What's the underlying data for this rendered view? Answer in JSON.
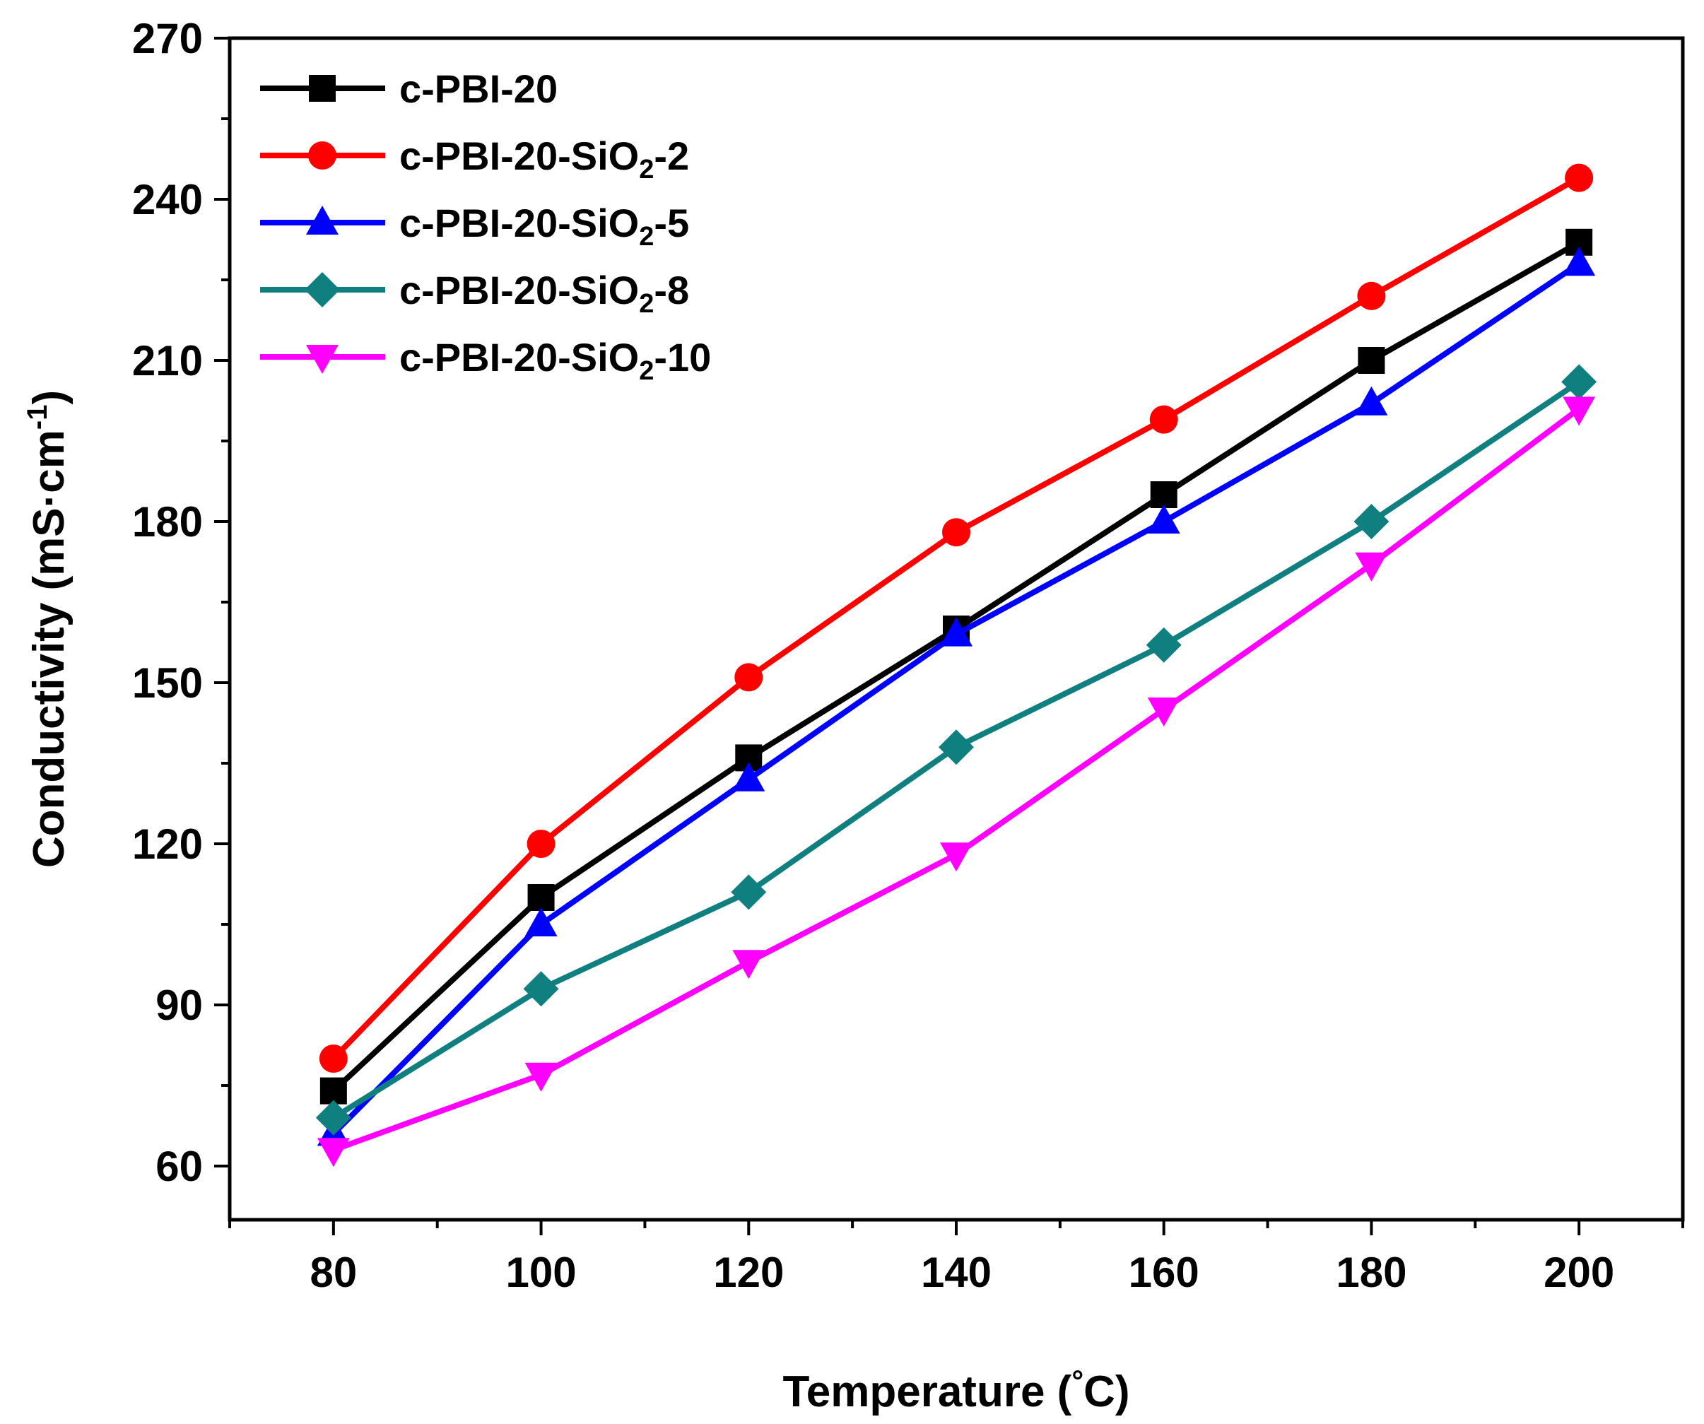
{
  "chart_data": {
    "type": "line",
    "title": "",
    "xlabel": "Temperature (°C)",
    "xlabel_parts": {
      "main": "Temperature (",
      "degree": "°",
      "unit": "C)"
    },
    "ylabel": "Conductivity (mS·cm-1)",
    "ylabel_parts": {
      "main": "Conductivity (mS·cm",
      "sup": "-1",
      "close": ")"
    },
    "x": [
      80,
      100,
      120,
      140,
      160,
      180,
      200
    ],
    "xlim": [
      70,
      210
    ],
    "ylim": [
      50,
      270
    ],
    "x_ticks": [
      80,
      100,
      120,
      140,
      160,
      180,
      200
    ],
    "y_ticks": [
      60,
      90,
      120,
      150,
      180,
      210,
      240,
      270
    ],
    "legend_position": "top-left",
    "grid": false,
    "series": [
      {
        "name": "c-PBI-20",
        "label_main": "c-PBI-20",
        "label_sub": "",
        "label_tail": "",
        "color": "#000000",
        "marker": "square",
        "values": [
          74,
          110,
          136,
          160,
          185,
          210,
          232
        ]
      },
      {
        "name": "c-PBI-20-SiO2-2",
        "label_main": "c-PBI-20-SiO",
        "label_sub": "2",
        "label_tail": "-2",
        "color": "#ff0000",
        "marker": "circle",
        "values": [
          80,
          120,
          151,
          178,
          199,
          222,
          244
        ]
      },
      {
        "name": "c-PBI-20-SiO2-5",
        "label_main": "c-PBI-20-SiO",
        "label_sub": "2",
        "label_tail": "-5",
        "color": "#0000ff",
        "marker": "triangle-up",
        "values": [
          66,
          105,
          132,
          159,
          180,
          202,
          228
        ]
      },
      {
        "name": "c-PBI-20-SiO2-8",
        "label_main": "c-PBI-20-SiO",
        "label_sub": "2",
        "label_tail": "-8",
        "color": "#0f7f7f",
        "marker": "diamond",
        "values": [
          69,
          93,
          111,
          138,
          157,
          180,
          206
        ]
      },
      {
        "name": "c-PBI-20-SiO2-10",
        "label_main": "c-PBI-20-SiO",
        "label_sub": "2",
        "label_tail": "-10",
        "color": "#ff00ff",
        "marker": "triangle-down",
        "values": [
          63,
          77,
          98,
          118,
          145,
          172,
          201
        ]
      }
    ]
  }
}
